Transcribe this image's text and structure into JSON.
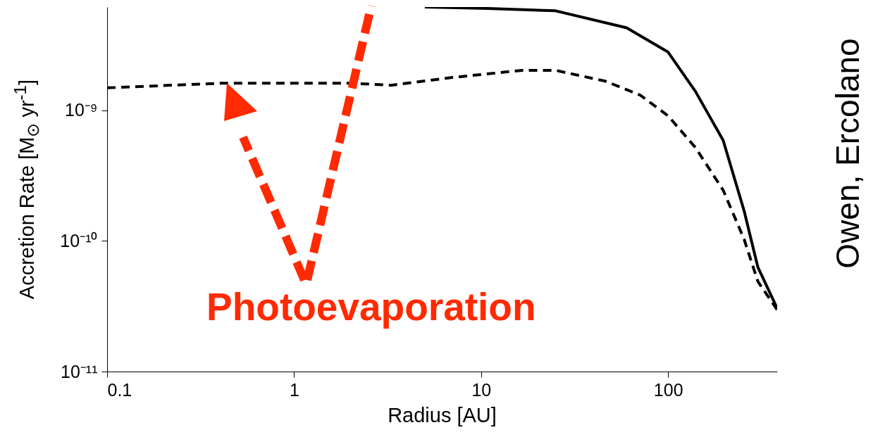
{
  "chart_data": {
    "type": "line",
    "xlabel": "Radius [AU]",
    "ylabel": "Accretion Rate [M$_{⊙}$ yr$^{-1}$]",
    "log": "xy",
    "xlim": [
      0.1,
      383
    ],
    "ylim": [
      1e-11,
      6.2e-09
    ],
    "xticks": [
      0.1,
      1,
      10,
      100
    ],
    "yticks": [
      {
        "value": 1e-11,
        "label": "10⁻¹¹"
      },
      {
        "value": 1e-10,
        "label": "10⁻¹⁰"
      },
      {
        "value": 1e-09,
        "label": "10⁻⁹"
      }
    ],
    "annotations": [
      "Photoevaporation",
      "Owen, Ercolano"
    ],
    "series": [
      {
        "color": "#000000",
        "line_style": "solid",
        "x": [
          5,
          10.8,
          25,
          60,
          100,
          140,
          197,
          255,
          302,
          383
        ],
        "values": [
          6.2e-09,
          6.05e-09,
          5.8e-09,
          4.3e-09,
          2.8e-09,
          1.4e-09,
          5.9e-10,
          1.7e-10,
          6.3e-11,
          3.05e-11
        ]
      },
      {
        "color": "#000000",
        "line_style": "dashed",
        "x": [
          0.1,
          0.42,
          1.95,
          3.3,
          7.0,
          16.6,
          25,
          46,
          71,
          100,
          140,
          197,
          255,
          302,
          383
        ],
        "values": [
          1.49e-09,
          1.62e-09,
          1.62e-09,
          1.56e-09,
          1.79e-09,
          2.03e-09,
          2.03e-09,
          1.68e-09,
          1.31e-09,
          9.1e-10,
          5.2e-10,
          2.45e-10,
          1.03e-10,
          4.9e-11,
          2.97e-11
        ]
      }
    ]
  }
}
